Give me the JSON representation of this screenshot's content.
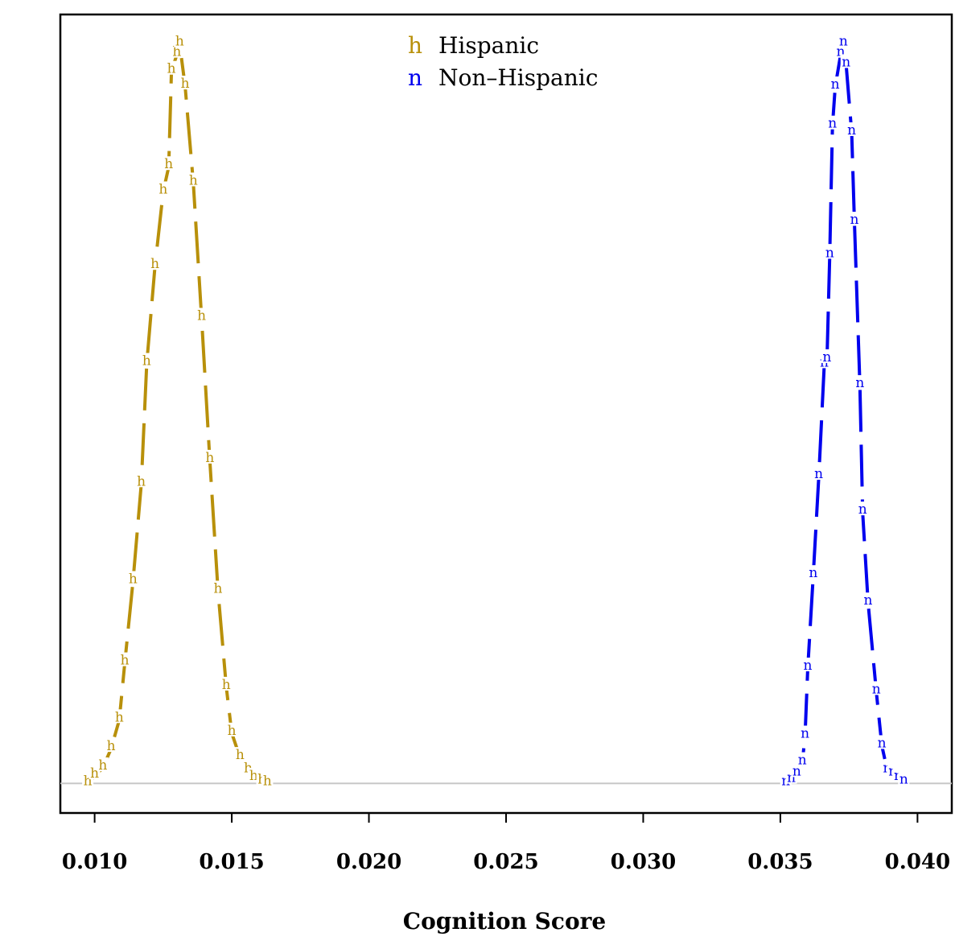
{
  "chart_data": {
    "type": "line",
    "title": "",
    "xlabel": "Cognition Score",
    "ylabel": "",
    "xlim": [
      0.00875,
      0.04125
    ],
    "ylim": [
      -0.04,
      1.04
    ],
    "x_ticks": [
      "0.010",
      "0.015",
      "0.020",
      "0.025",
      "0.030",
      "0.035",
      "0.040"
    ],
    "x_tick_values": [
      0.01,
      0.015,
      0.02,
      0.025,
      0.03,
      0.035,
      0.04
    ],
    "y_ticks": [],
    "grid": false,
    "baseline": 0,
    "legend": {
      "position": "top-center",
      "entries": [
        {
          "symbol": "h",
          "label": "Hispanic",
          "color": "#b8900a"
        },
        {
          "symbol": "n",
          "label": "Non–Hispanic",
          "color": "#0000ee"
        }
      ]
    },
    "series": [
      {
        "name": "Hispanic",
        "symbol": "h",
        "color": "#b8900a",
        "line_style": "dashed",
        "points": [
          [
            0.00975,
            0.0
          ],
          [
            0.01,
            0.01
          ],
          [
            0.0103,
            0.021
          ],
          [
            0.0106,
            0.047
          ],
          [
            0.0109,
            0.086
          ],
          [
            0.0111,
            0.163
          ],
          [
            0.0114,
            0.273
          ],
          [
            0.0117,
            0.405
          ],
          [
            0.0119,
            0.568
          ],
          [
            0.0122,
            0.699
          ],
          [
            0.0125,
            0.8
          ],
          [
            0.0127,
            0.834
          ],
          [
            0.0128,
            0.963
          ],
          [
            0.013,
            0.986
          ],
          [
            0.0131,
            1.0
          ],
          [
            0.0133,
            0.943
          ],
          [
            0.0136,
            0.812
          ],
          [
            0.0139,
            0.629
          ],
          [
            0.0142,
            0.437
          ],
          [
            0.0145,
            0.26
          ],
          [
            0.0148,
            0.13
          ],
          [
            0.015,
            0.068
          ],
          [
            0.0153,
            0.035
          ],
          [
            0.0156,
            0.017
          ],
          [
            0.0158,
            0.007
          ],
          [
            0.0161,
            0.002
          ],
          [
            0.0163,
            0.0
          ]
        ]
      },
      {
        "name": "Non–Hispanic",
        "symbol": "n",
        "color": "#0000ee",
        "line_style": "dashed",
        "points": [
          [
            0.0352,
            0.0
          ],
          [
            0.0354,
            0.004
          ],
          [
            0.0356,
            0.013
          ],
          [
            0.0358,
            0.028
          ],
          [
            0.0359,
            0.064
          ],
          [
            0.036,
            0.156
          ],
          [
            0.0362,
            0.281
          ],
          [
            0.0364,
            0.415
          ],
          [
            0.0366,
            0.566
          ],
          [
            0.0367,
            0.573
          ],
          [
            0.0368,
            0.714
          ],
          [
            0.0369,
            0.889
          ],
          [
            0.037,
            0.942
          ],
          [
            0.0372,
            0.986
          ],
          [
            0.0373,
            1.0
          ],
          [
            0.0374,
            0.972
          ],
          [
            0.0376,
            0.88
          ],
          [
            0.0377,
            0.759
          ],
          [
            0.0379,
            0.538
          ],
          [
            0.038,
            0.367
          ],
          [
            0.0382,
            0.244
          ],
          [
            0.0385,
            0.124
          ],
          [
            0.0387,
            0.051
          ],
          [
            0.0389,
            0.017
          ],
          [
            0.0391,
            0.013
          ],
          [
            0.0393,
            0.007
          ],
          [
            0.0395,
            0.002
          ]
        ]
      }
    ]
  }
}
